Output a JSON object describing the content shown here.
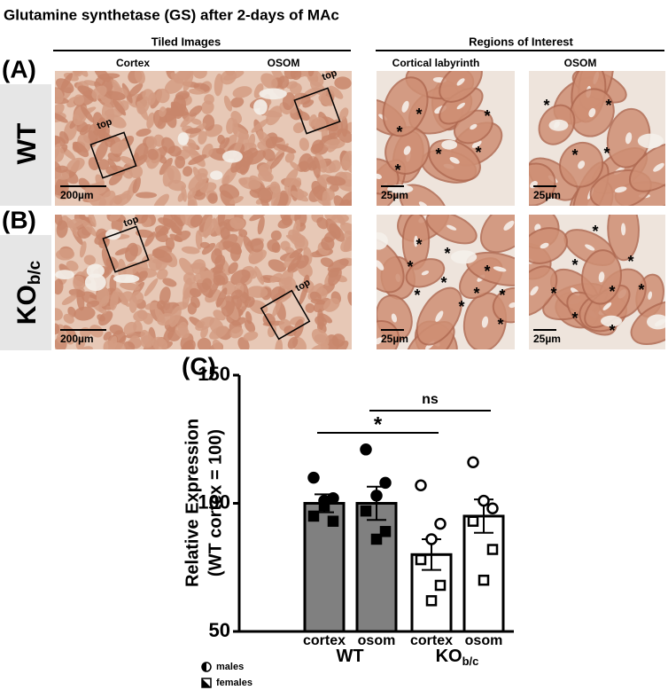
{
  "title": "Glutamine synthetase (GS) after 2-days of MAc",
  "headers": {
    "tiled": "Tiled Images",
    "roi": "Regions of Interest"
  },
  "columns": [
    "Cortex",
    "OSOM",
    "Cortical labyrinth",
    "OSOM"
  ],
  "rows": [
    {
      "panel": "(A)",
      "label": "WT"
    },
    {
      "panel": "(B)",
      "label": "KO",
      "label_sub": "b/c"
    }
  ],
  "roi_label": "top",
  "scale_bars": [
    "200µm",
    "25µm"
  ],
  "marker": "*",
  "chart_data": {
    "type": "bar",
    "panel": "(C)",
    "ylabel": [
      "Relative Expression",
      "(WT cortex = 100)"
    ],
    "categories": [
      "cortex",
      "osom",
      "cortex",
      "osom"
    ],
    "groups": [
      {
        "name": "WT"
      },
      {
        "name": "KO",
        "sub": "b/c"
      }
    ],
    "values": [
      100,
      100,
      80,
      95
    ],
    "errors": [
      3.5,
      6.5,
      6,
      6.5
    ],
    "colors": [
      "#808080",
      "#808080",
      "#ffffff",
      "#ffffff"
    ],
    "filled": [
      true,
      true,
      false,
      false
    ],
    "point_series": [
      {
        "name": "males",
        "values": [
          [
            110,
            102,
            101
          ],
          [
            121,
            108,
            103
          ],
          [
            107,
            92,
            86
          ],
          [
            116,
            98,
            101
          ]
        ]
      },
      {
        "name": "females",
        "values": [
          [
            95,
            93,
            99
          ],
          [
            97,
            89,
            86
          ],
          [
            78,
            68,
            62
          ],
          [
            93,
            82,
            70
          ]
        ]
      }
    ],
    "ylim": [
      50,
      150
    ],
    "yticks": [
      50,
      100,
      150
    ],
    "annotations": [
      {
        "text": "*",
        "from": 0,
        "to": 2
      },
      {
        "text": "ns",
        "from": 1,
        "to": 3
      }
    ]
  }
}
